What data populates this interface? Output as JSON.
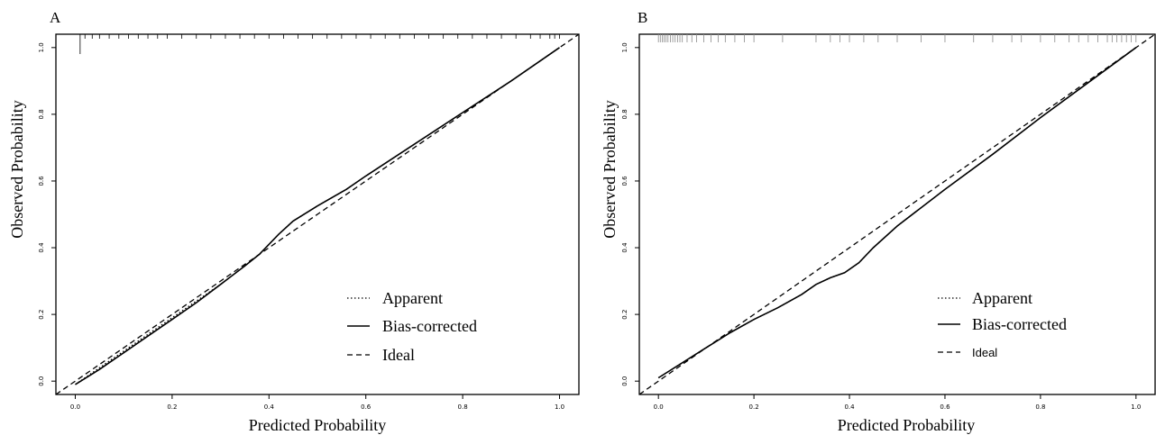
{
  "chart_data": [
    {
      "panel": "A",
      "type": "line",
      "xlabel": "Predicted Probability",
      "ylabel": "Observed Probability",
      "xlim": [
        -0.04,
        1.04
      ],
      "ylim": [
        -0.04,
        1.04
      ],
      "x_ticks": [
        "0.0",
        "0.2",
        "0.4",
        "0.6",
        "0.8",
        "1.0"
      ],
      "y_ticks": [
        "0.0",
        "0.2",
        "0.4",
        "0.6",
        "0.8",
        "1.0"
      ],
      "grid": false,
      "legend_position": "bottom-right",
      "legend": [
        "Apparent",
        "Bias-corrected",
        "Ideal"
      ],
      "series": [
        {
          "name": "Apparent",
          "style": "dotted",
          "x": [
            0.0,
            0.05,
            0.1,
            0.15,
            0.2,
            0.25,
            0.3,
            0.35,
            0.38,
            0.42,
            0.45,
            0.5,
            0.56,
            0.6,
            0.7,
            0.8,
            0.9,
            1.0
          ],
          "y": [
            -0.01,
            0.04,
            0.09,
            0.14,
            0.19,
            0.24,
            0.29,
            0.345,
            0.38,
            0.44,
            0.48,
            0.525,
            0.575,
            0.615,
            0.71,
            0.805,
            0.9,
            1.0
          ]
        },
        {
          "name": "Bias-corrected",
          "style": "solid",
          "x": [
            0.0,
            0.05,
            0.1,
            0.15,
            0.2,
            0.25,
            0.3,
            0.35,
            0.38,
            0.42,
            0.45,
            0.5,
            0.56,
            0.6,
            0.7,
            0.8,
            0.9,
            1.0
          ],
          "y": [
            -0.01,
            0.035,
            0.085,
            0.135,
            0.185,
            0.235,
            0.29,
            0.345,
            0.38,
            0.44,
            0.48,
            0.525,
            0.575,
            0.615,
            0.71,
            0.805,
            0.9,
            1.0
          ]
        },
        {
          "name": "Ideal",
          "style": "dashed",
          "x": [
            -0.04,
            1.04
          ],
          "y": [
            -0.04,
            1.04
          ]
        }
      ],
      "rug": [
        0.01,
        0.02,
        0.035,
        0.05,
        0.07,
        0.09,
        0.11,
        0.13,
        0.15,
        0.17,
        0.19,
        0.22,
        0.25,
        0.28,
        0.31,
        0.34,
        0.37,
        0.4,
        0.43,
        0.46,
        0.49,
        0.52,
        0.55,
        0.58,
        0.61,
        0.64,
        0.67,
        0.7,
        0.73,
        0.76,
        0.79,
        0.82,
        0.85,
        0.88,
        0.91,
        0.94,
        0.96,
        0.98,
        0.99,
        1.0
      ]
    },
    {
      "panel": "B",
      "type": "line",
      "xlabel": "Predicted Probability",
      "ylabel": "Observed Probability",
      "xlim": [
        -0.04,
        1.04
      ],
      "ylim": [
        -0.04,
        1.04
      ],
      "x_ticks": [
        "0.0",
        "0.2",
        "0.4",
        "0.6",
        "0.8",
        "1.0"
      ],
      "y_ticks": [
        "0.0",
        "0.2",
        "0.4",
        "0.6",
        "0.8",
        "1.0"
      ],
      "grid": false,
      "legend_position": "bottom-right",
      "legend": [
        "Apparent",
        "Bias-corrected",
        "Ideal"
      ],
      "series": [
        {
          "name": "Apparent",
          "style": "dotted",
          "x": [
            0.0,
            0.05,
            0.1,
            0.15,
            0.2,
            0.25,
            0.3,
            0.33,
            0.36,
            0.39,
            0.42,
            0.45,
            0.5,
            0.6,
            0.7,
            0.8,
            0.9,
            1.0
          ],
          "y": [
            0.01,
            0.055,
            0.1,
            0.145,
            0.185,
            0.22,
            0.26,
            0.29,
            0.31,
            0.325,
            0.355,
            0.4,
            0.465,
            0.575,
            0.68,
            0.79,
            0.895,
            1.0
          ]
        },
        {
          "name": "Bias-corrected",
          "style": "solid",
          "x": [
            0.0,
            0.05,
            0.1,
            0.15,
            0.2,
            0.25,
            0.3,
            0.33,
            0.36,
            0.39,
            0.42,
            0.45,
            0.5,
            0.6,
            0.7,
            0.8,
            0.9,
            1.0
          ],
          "y": [
            0.01,
            0.055,
            0.1,
            0.145,
            0.185,
            0.22,
            0.26,
            0.29,
            0.31,
            0.325,
            0.355,
            0.4,
            0.465,
            0.575,
            0.68,
            0.79,
            0.895,
            1.0
          ]
        },
        {
          "name": "Ideal",
          "style": "dashed",
          "x": [
            -0.04,
            1.04
          ],
          "y": [
            -0.04,
            1.04
          ]
        }
      ],
      "rug": [
        0.0,
        0.004,
        0.008,
        0.012,
        0.016,
        0.02,
        0.025,
        0.03,
        0.035,
        0.04,
        0.045,
        0.05,
        0.06,
        0.07,
        0.08,
        0.095,
        0.11,
        0.125,
        0.14,
        0.16,
        0.18,
        0.2,
        0.26,
        0.33,
        0.36,
        0.38,
        0.4,
        0.43,
        0.46,
        0.5,
        0.55,
        0.6,
        0.66,
        0.7,
        0.74,
        0.76,
        0.8,
        0.83,
        0.86,
        0.88,
        0.9,
        0.92,
        0.94,
        0.95,
        0.96,
        0.97,
        0.98,
        0.99,
        1.0
      ]
    }
  ]
}
